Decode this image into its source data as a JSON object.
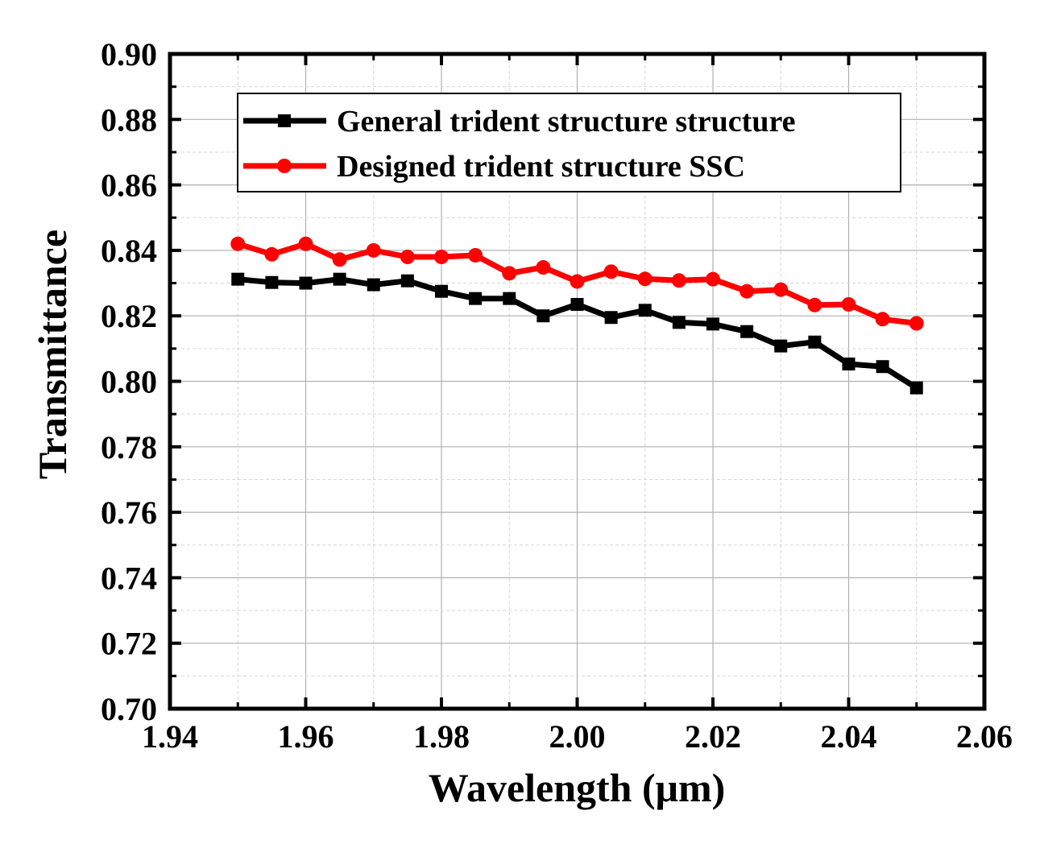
{
  "chart_data": {
    "type": "line",
    "xlabel": "Wavelength (μm)",
    "ylabel": "Transmittance",
    "xlim": [
      1.94,
      2.06
    ],
    "ylim": [
      0.7,
      0.9
    ],
    "xticks": [
      "1.94",
      "1.96",
      "1.98",
      "2.00",
      "2.02",
      "2.04",
      "2.06"
    ],
    "yticks": [
      "0.70",
      "0.72",
      "0.74",
      "0.76",
      "0.78",
      "0.80",
      "0.82",
      "0.84",
      "0.86",
      "0.88",
      "0.90"
    ],
    "grid": true,
    "legend_position": "top",
    "x": [
      1.95,
      1.955,
      1.96,
      1.965,
      1.97,
      1.975,
      1.98,
      1.985,
      1.99,
      1.995,
      2.0,
      2.005,
      2.01,
      2.015,
      2.02,
      2.025,
      2.03,
      2.035,
      2.04,
      2.045,
      2.05
    ],
    "series": [
      {
        "name": "General trident structure structure",
        "color": "#000000",
        "marker": "square",
        "values": [
          0.8312,
          0.8302,
          0.83,
          0.8312,
          0.8295,
          0.8307,
          0.8275,
          0.8253,
          0.8253,
          0.82,
          0.8235,
          0.8195,
          0.8217,
          0.818,
          0.8175,
          0.8152,
          0.8108,
          0.812,
          0.8053,
          0.8045,
          0.798
        ]
      },
      {
        "name": "Designed trident structure SSC",
        "color": "#ff0000",
        "marker": "circle",
        "values": [
          0.842,
          0.8388,
          0.842,
          0.8372,
          0.84,
          0.838,
          0.838,
          0.8385,
          0.833,
          0.8348,
          0.8305,
          0.8335,
          0.8313,
          0.8308,
          0.8312,
          0.8275,
          0.828,
          0.8233,
          0.8235,
          0.819,
          0.8177
        ]
      }
    ]
  }
}
